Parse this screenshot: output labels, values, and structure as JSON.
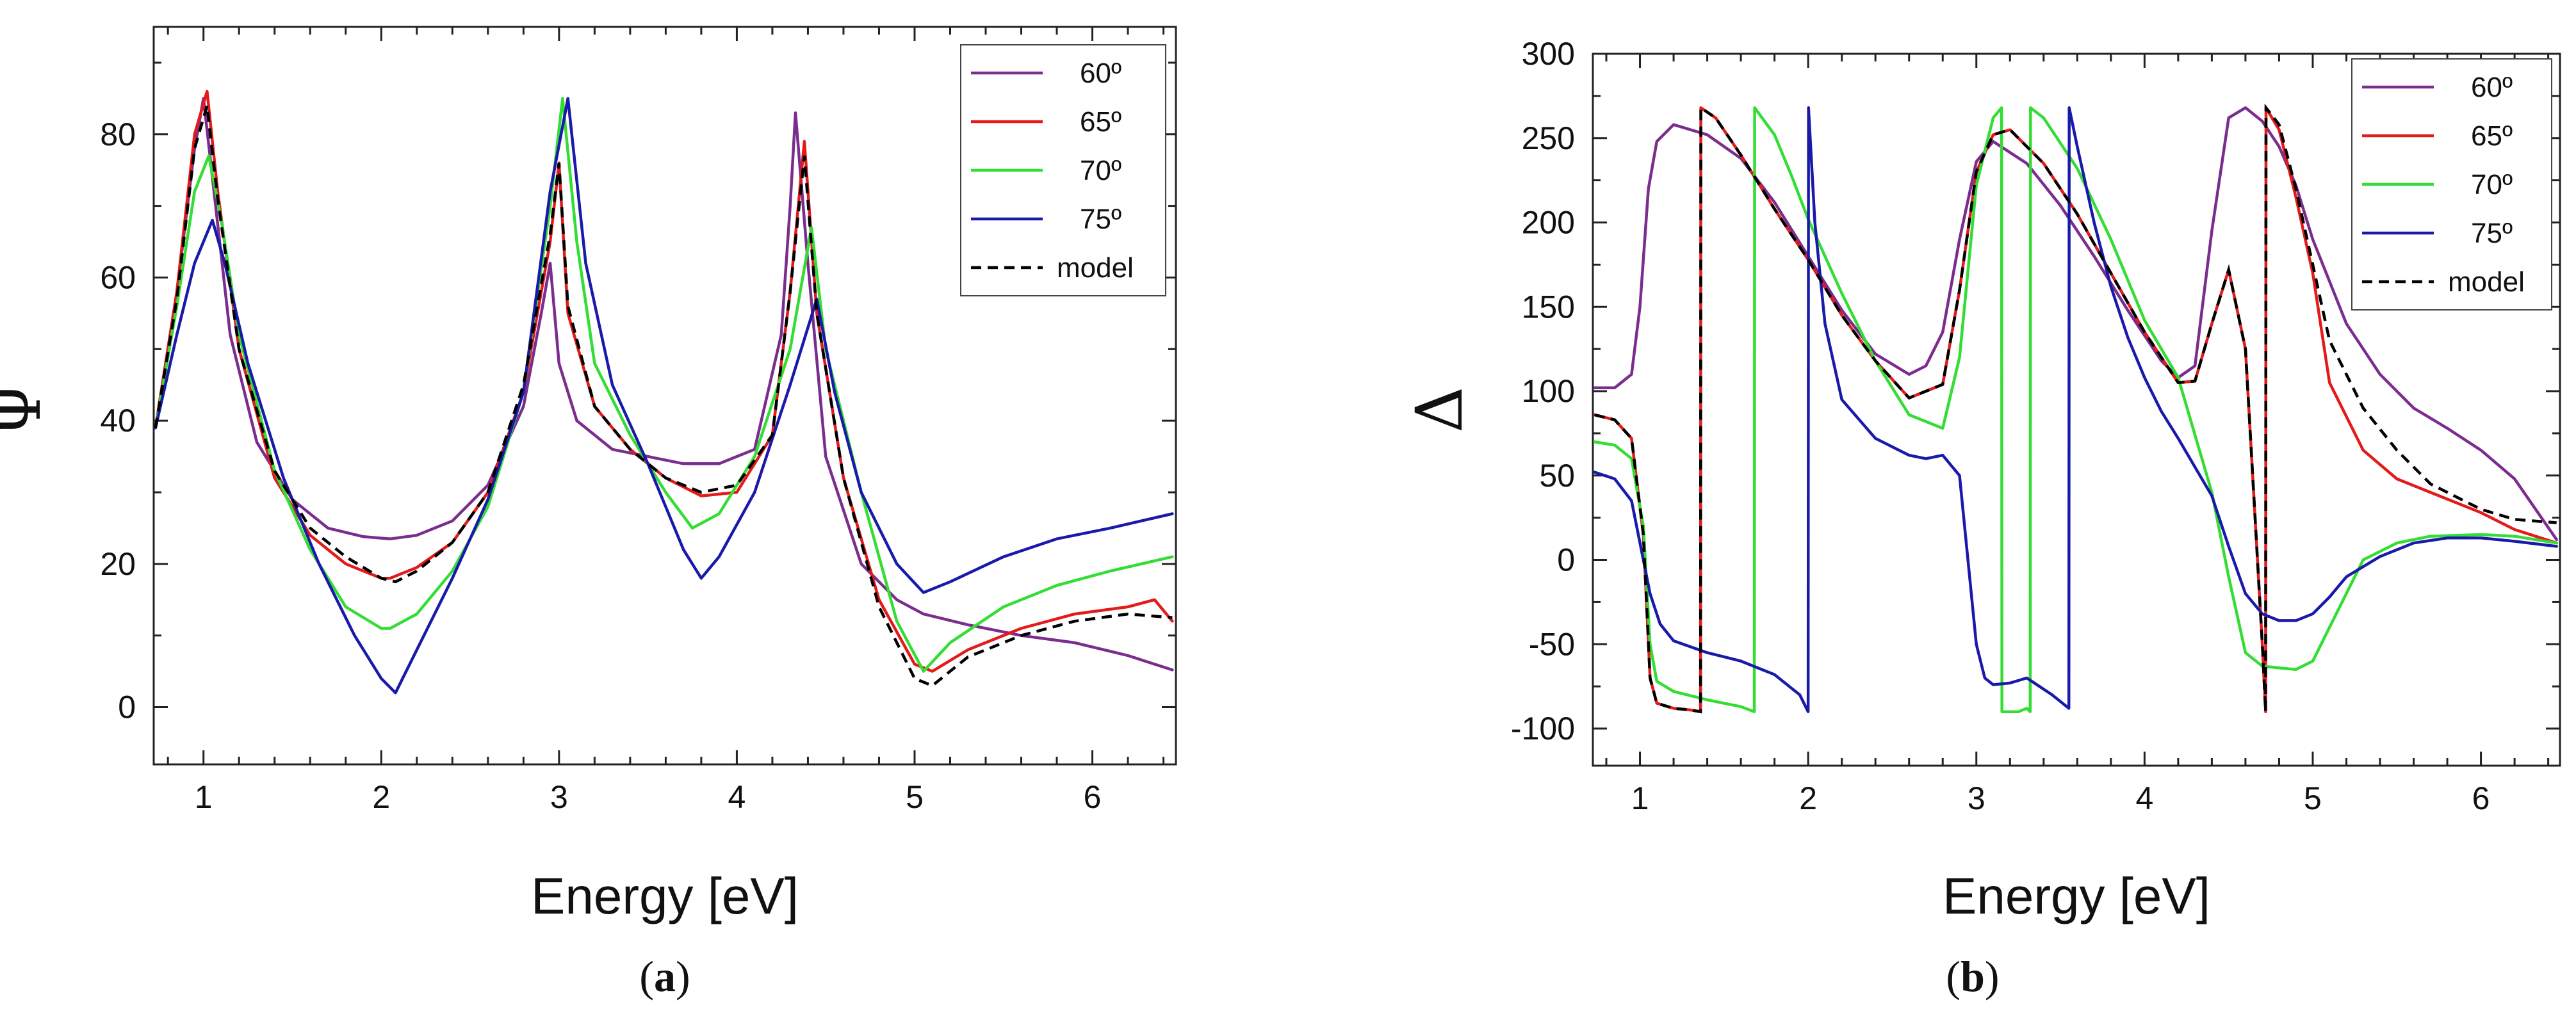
{
  "colors": {
    "60": "#7b2d8e",
    "65": "#e41a1a",
    "70": "#33dd33",
    "75": "#1a1aaa",
    "model": "#000000"
  },
  "chart_data": [
    {
      "id": "a",
      "type": "line",
      "caption": "a",
      "xlabel": "Energy [eV]",
      "ylabel": "Ψ",
      "xlim": [
        0.72,
        6.47
      ],
      "ylim": [
        -8,
        95
      ],
      "xticks": [
        1,
        2,
        3,
        4,
        5,
        6
      ],
      "yticks": [
        0,
        20,
        40,
        60,
        80
      ],
      "legend_position": "top-right",
      "legend": [
        "60º",
        "65º",
        "70º",
        "75º",
        "model"
      ],
      "series": [
        {
          "name": "60º",
          "color_key": "60",
          "x": [
            0.73,
            0.85,
            0.95,
            1.0,
            1.05,
            1.15,
            1.3,
            1.5,
            1.7,
            1.9,
            2.05,
            2.2,
            2.4,
            2.6,
            2.8,
            2.9,
            2.95,
            3.0,
            3.1,
            3.3,
            3.5,
            3.7,
            3.9,
            4.1,
            4.25,
            4.3,
            4.33,
            4.4,
            4.5,
            4.7,
            4.9,
            5.05,
            5.3,
            5.6,
            5.9,
            6.2,
            6.45
          ],
          "y": [
            39,
            58,
            78,
            85,
            74,
            52,
            37,
            29,
            25,
            23.8,
            23.5,
            24,
            26,
            31,
            42,
            55,
            62,
            48,
            40,
            36,
            35,
            34,
            34,
            36,
            52,
            70,
            83,
            62,
            35,
            20,
            15,
            13,
            11.5,
            10,
            9,
            7.2,
            5.2
          ]
        },
        {
          "name": "65º",
          "color_key": "65",
          "x": [
            0.73,
            0.85,
            0.95,
            1.02,
            1.08,
            1.2,
            1.4,
            1.6,
            1.8,
            2.0,
            2.05,
            2.2,
            2.4,
            2.6,
            2.8,
            2.95,
            3.0,
            3.05,
            3.2,
            3.4,
            3.6,
            3.8,
            4.0,
            4.2,
            4.3,
            4.38,
            4.45,
            4.6,
            4.8,
            5.0,
            5.1,
            5.3,
            5.6,
            5.9,
            6.2,
            6.35,
            6.45
          ],
          "y": [
            39,
            58,
            80,
            86,
            72,
            50,
            32,
            24,
            20,
            18,
            18,
            19.5,
            23,
            30,
            44,
            65,
            76,
            55,
            42,
            36,
            32,
            29.5,
            30,
            38,
            58,
            79,
            55,
            32,
            15,
            6,
            5,
            8,
            11,
            13,
            14,
            15,
            12
          ]
        },
        {
          "name": "70º",
          "color_key": "70",
          "x": [
            0.73,
            0.85,
            0.95,
            1.03,
            1.1,
            1.2,
            1.4,
            1.6,
            1.8,
            2.0,
            2.05,
            2.2,
            2.4,
            2.6,
            2.8,
            2.95,
            3.02,
            3.1,
            3.2,
            3.4,
            3.6,
            3.75,
            3.9,
            4.1,
            4.3,
            4.42,
            4.5,
            4.7,
            4.9,
            5.05,
            5.2,
            5.5,
            5.8,
            6.1,
            6.45
          ],
          "y": [
            39,
            56,
            72,
            77,
            68,
            52,
            33,
            22,
            14,
            11,
            11,
            13,
            19,
            28,
            44,
            70,
            85,
            65,
            48,
            38,
            30,
            25,
            27,
            35,
            50,
            67,
            50,
            30,
            12,
            5,
            9,
            14,
            17,
            19,
            21
          ]
        },
        {
          "name": "75º",
          "color_key": "75",
          "x": [
            0.73,
            0.85,
            0.95,
            1.05,
            1.12,
            1.25,
            1.45,
            1.65,
            1.85,
            2.0,
            2.08,
            2.2,
            2.4,
            2.6,
            2.8,
            2.95,
            3.05,
            3.15,
            3.3,
            3.5,
            3.7,
            3.8,
            3.9,
            4.1,
            4.3,
            4.45,
            4.55,
            4.7,
            4.9,
            5.05,
            5.2,
            5.5,
            5.8,
            6.1,
            6.45
          ],
          "y": [
            39,
            52,
            62,
            68,
            62,
            48,
            32,
            20,
            10,
            4,
            2,
            8,
            18,
            29,
            44,
            72,
            85,
            62,
            45,
            34,
            22,
            18,
            21,
            30,
            45,
            57,
            44,
            30,
            20,
            16,
            17.5,
            21,
            23.5,
            25,
            27
          ]
        },
        {
          "name": "model",
          "color_key": "model",
          "dashed": true,
          "x": [
            0.73,
            0.85,
            0.95,
            1.02,
            1.08,
            1.2,
            1.4,
            1.6,
            1.8,
            2.0,
            2.08,
            2.2,
            2.4,
            2.6,
            2.8,
            2.95,
            3.0,
            3.05,
            3.2,
            3.4,
            3.6,
            3.8,
            4.0,
            4.2,
            4.3,
            4.38,
            4.45,
            4.6,
            4.8,
            5.0,
            5.1,
            5.3,
            5.6,
            5.9,
            6.2,
            6.45
          ],
          "y": [
            39,
            57,
            78,
            84,
            71,
            50,
            33,
            25,
            21,
            18,
            17.5,
            19,
            23,
            30,
            45,
            66,
            76,
            56,
            42,
            36,
            32,
            30,
            31,
            38,
            58,
            77,
            55,
            32,
            14,
            4,
            3,
            7,
            10,
            12,
            13,
            12.5
          ]
        }
      ]
    },
    {
      "id": "b",
      "type": "line",
      "caption": "b",
      "xlabel": "Energy [eV]",
      "ylabel": "Δ",
      "xlim": [
        0.72,
        6.47
      ],
      "ylim": [
        -122,
        300
      ],
      "xticks": [
        1,
        2,
        3,
        4,
        5,
        6
      ],
      "yticks": [
        -100,
        -50,
        0,
        50,
        100,
        150,
        200,
        250,
        300
      ],
      "legend_position": "top-right",
      "legend": [
        "60º",
        "65º",
        "70º",
        "75º",
        "model"
      ],
      "series": [
        {
          "name": "60º",
          "color_key": "60",
          "x": [
            0.73,
            0.85,
            0.95,
            1.0,
            1.05,
            1.1,
            1.2,
            1.4,
            1.6,
            1.8,
            2.0,
            2.2,
            2.4,
            2.6,
            2.7,
            2.8,
            2.9,
            3.0,
            3.1,
            3.3,
            3.5,
            3.7,
            3.9,
            4.1,
            4.2,
            4.3,
            4.4,
            4.5,
            4.6,
            4.7,
            4.8,
            4.9,
            5.0,
            5.2,
            5.4,
            5.6,
            5.8,
            6.0,
            6.2,
            6.45
          ],
          "y": [
            102,
            102,
            110,
            150,
            220,
            248,
            258,
            252,
            238,
            212,
            180,
            148,
            122,
            110,
            115,
            135,
            190,
            236,
            248,
            235,
            210,
            180,
            148,
            118,
            108,
            115,
            195,
            262,
            268,
            260,
            245,
            222,
            190,
            140,
            110,
            90,
            78,
            65,
            48,
            12
          ]
        },
        {
          "name": "65º",
          "color_key": "65",
          "x": [
            0.73,
            0.85,
            0.95,
            1.02,
            1.06,
            1.1,
            1.2,
            1.3,
            1.36,
            1.362,
            1.45,
            1.6,
            1.8,
            2.0,
            2.2,
            2.4,
            2.6,
            2.8,
            2.9,
            3.0,
            3.1,
            3.2,
            3.4,
            3.6,
            3.8,
            4.0,
            4.2,
            4.3,
            4.4,
            4.5,
            4.6,
            4.7,
            4.72,
            4.722,
            4.8,
            4.9,
            5.0,
            5.1,
            5.3,
            5.5,
            5.7,
            6.0,
            6.2,
            6.45
          ],
          "y": [
            86,
            83,
            72,
            15,
            -70,
            -85,
            -88,
            -89,
            -90,
            268,
            262,
            240,
            208,
            178,
            145,
            118,
            96,
            104,
            160,
            230,
            252,
            255,
            235,
            205,
            170,
            135,
            105,
            106,
            140,
            172,
            125,
            -50,
            -90,
            268,
            255,
            215,
            170,
            105,
            65,
            48,
            40,
            28,
            18,
            10
          ]
        },
        {
          "name": "70º",
          "color_key": "70",
          "x": [
            0.73,
            0.85,
            0.95,
            1.02,
            1.06,
            1.1,
            1.2,
            1.4,
            1.6,
            1.68,
            1.682,
            1.8,
            1.9,
            2.0,
            2.2,
            2.4,
            2.6,
            2.8,
            2.9,
            3.0,
            3.1,
            3.15,
            3.152,
            3.25,
            3.3,
            3.32,
            3.322,
            3.4,
            3.6,
            3.8,
            4.0,
            4.2,
            4.3,
            4.4,
            4.5,
            4.6,
            4.7,
            4.8,
            4.9,
            5.0,
            5.1,
            5.3,
            5.5,
            5.7,
            6.0,
            6.2,
            6.45
          ],
          "y": [
            70,
            68,
            60,
            20,
            -50,
            -72,
            -78,
            -83,
            -87,
            -90,
            268,
            252,
            228,
            202,
            158,
            118,
            86,
            78,
            120,
            222,
            262,
            268,
            -90,
            -90,
            -88,
            -90,
            268,
            262,
            232,
            190,
            142,
            108,
            74,
            40,
            -10,
            -55,
            -63,
            -64,
            -65,
            -60,
            -40,
            0,
            10,
            14,
            15,
            14,
            10
          ]
        },
        {
          "name": "75º",
          "color_key": "75",
          "x": [
            0.73,
            0.85,
            0.95,
            1.02,
            1.06,
            1.12,
            1.2,
            1.4,
            1.6,
            1.8,
            1.95,
            2.0,
            2.002,
            2.04,
            2.1,
            2.2,
            2.4,
            2.6,
            2.7,
            2.8,
            2.9,
            2.95,
            3.0,
            3.05,
            3.1,
            3.2,
            3.3,
            3.45,
            3.55,
            3.552,
            3.6,
            3.7,
            3.8,
            3.9,
            4.0,
            4.1,
            4.2,
            4.3,
            4.4,
            4.5,
            4.6,
            4.7,
            4.8,
            4.9,
            5.0,
            5.1,
            5.2,
            5.4,
            5.6,
            5.8,
            6.0,
            6.2,
            6.45
          ],
          "y": [
            52,
            48,
            35,
            0,
            -20,
            -38,
            -48,
            -55,
            -60,
            -68,
            -80,
            -90,
            268,
            200,
            140,
            95,
            72,
            62,
            60,
            62,
            50,
            0,
            -50,
            -70,
            -74,
            -73,
            -70,
            -80,
            -88,
            268,
            245,
            200,
            162,
            132,
            108,
            88,
            72,
            55,
            38,
            8,
            -20,
            -32,
            -36,
            -36,
            -32,
            -22,
            -10,
            2,
            10,
            13,
            13,
            11,
            8
          ]
        },
        {
          "name": "model",
          "color_key": "model",
          "dashed": true,
          "x": [
            0.73,
            0.85,
            0.95,
            1.02,
            1.06,
            1.1,
            1.2,
            1.3,
            1.36,
            1.362,
            1.45,
            1.6,
            1.8,
            2.0,
            2.2,
            2.4,
            2.6,
            2.8,
            2.9,
            3.0,
            3.1,
            3.2,
            3.4,
            3.6,
            3.8,
            4.0,
            4.2,
            4.3,
            4.4,
            4.5,
            4.6,
            4.7,
            4.72,
            4.722,
            4.8,
            4.9,
            5.0,
            5.1,
            5.3,
            5.5,
            5.7,
            6.0,
            6.2,
            6.45
          ],
          "y": [
            86,
            83,
            72,
            15,
            -70,
            -85,
            -88,
            -89,
            -90,
            268,
            262,
            240,
            208,
            178,
            145,
            118,
            96,
            104,
            160,
            230,
            252,
            255,
            235,
            205,
            170,
            135,
            105,
            106,
            140,
            172,
            125,
            -50,
            -90,
            268,
            258,
            220,
            175,
            130,
            90,
            65,
            45,
            30,
            24,
            22
          ]
        }
      ]
    }
  ]
}
